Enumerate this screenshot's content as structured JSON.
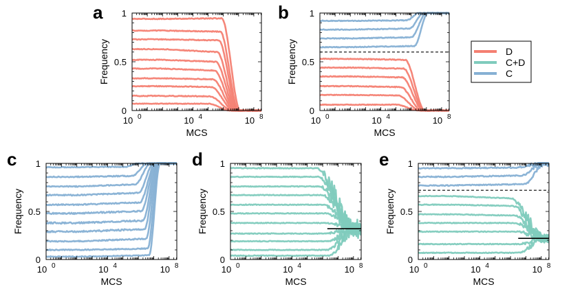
{
  "colors": {
    "D": "#f47f72",
    "CD": "#7fcbbd",
    "C": "#86b0d4",
    "axis": "#000000",
    "guide": "#000000"
  },
  "legend": {
    "entries": [
      {
        "label": "D",
        "color": "#f47f72"
      },
      {
        "label": "C+D",
        "color": "#7fcbbd"
      },
      {
        "label": "C",
        "color": "#86b0d4"
      }
    ]
  },
  "chart_data": [
    {
      "id": "a",
      "letter": "a",
      "type": "line",
      "xlabel": "MCS",
      "ylabel": "Frequency",
      "xscale": "log10",
      "xlim_exp": [
        0,
        8.5
      ],
      "ylim": [
        0,
        1
      ],
      "xticks": [
        {
          "exp": 0,
          "label": "10",
          "sup": "0"
        },
        {
          "exp": 4,
          "label": "10",
          "sup": "4"
        },
        {
          "exp": 8,
          "label": "10",
          "sup": "8"
        }
      ],
      "yticks": [
        {
          "value": 0,
          "label": "0"
        },
        {
          "value": 0.5,
          "label": "0.5"
        },
        {
          "value": 1,
          "label": "1"
        }
      ],
      "hline": null,
      "series": [
        {
          "name": "D",
          "color": "#f47f72",
          "start": 0.94,
          "end": 0,
          "drift": 0.005,
          "t1": 5.9,
          "t2": 7.1,
          "noise": 0.004
        },
        {
          "name": "D",
          "color": "#f47f72",
          "start": 0.82,
          "end": 0,
          "drift": -0.01,
          "t1": 5.8,
          "t2": 7.0,
          "noise": 0.004
        },
        {
          "name": "D",
          "color": "#f47f72",
          "start": 0.73,
          "end": 0,
          "drift": -0.01,
          "t1": 5.7,
          "t2": 6.95,
          "noise": 0.004
        },
        {
          "name": "D",
          "color": "#f47f72",
          "start": 0.63,
          "end": 0,
          "drift": -0.03,
          "t1": 5.6,
          "t2": 6.9,
          "noise": 0.004
        },
        {
          "name": "D",
          "color": "#f47f72",
          "start": 0.52,
          "end": 0,
          "drift": -0.02,
          "t1": 5.5,
          "t2": 6.85,
          "noise": 0.004
        },
        {
          "name": "D",
          "color": "#f47f72",
          "start": 0.43,
          "end": 0,
          "drift": -0.02,
          "t1": 5.4,
          "t2": 6.8,
          "noise": 0.004
        },
        {
          "name": "D",
          "color": "#f47f72",
          "start": 0.33,
          "end": 0,
          "drift": -0.01,
          "t1": 5.3,
          "t2": 6.75,
          "noise": 0.004
        },
        {
          "name": "D",
          "color": "#f47f72",
          "start": 0.25,
          "end": 0,
          "drift": -0.01,
          "t1": 5.2,
          "t2": 6.7,
          "noise": 0.004
        },
        {
          "name": "D",
          "color": "#f47f72",
          "start": 0.15,
          "end": 0,
          "drift": -0.005,
          "t1": 5.1,
          "t2": 6.6,
          "noise": 0.004
        },
        {
          "name": "D",
          "color": "#f47f72",
          "start": 0.07,
          "end": 0,
          "drift": 0,
          "t1": 5.0,
          "t2": 6.5,
          "noise": 0.003
        }
      ]
    },
    {
      "id": "b",
      "letter": "b",
      "type": "line",
      "xlabel": "MCS",
      "ylabel": "Frequency",
      "xscale": "log10",
      "xlim_exp": [
        0,
        8.5
      ],
      "ylim": [
        0,
        1
      ],
      "xticks": [
        {
          "exp": 0,
          "label": "10",
          "sup": "0"
        },
        {
          "exp": 4,
          "label": "10",
          "sup": "4"
        },
        {
          "exp": 8,
          "label": "10",
          "sup": "8"
        }
      ],
      "yticks": [
        {
          "value": 0,
          "label": "0"
        },
        {
          "value": 0.5,
          "label": "0.5"
        },
        {
          "value": 1,
          "label": "1"
        }
      ],
      "hline": {
        "y": 0.6,
        "style": "dashed"
      },
      "series": [
        {
          "name": "C",
          "color": "#86b0d4",
          "start": 0.92,
          "end": 1,
          "drift": 0.005,
          "t1": 5.7,
          "t2": 6.5,
          "noise": 0.004
        },
        {
          "name": "C",
          "color": "#86b0d4",
          "start": 0.83,
          "end": 1,
          "drift": 0.01,
          "t1": 5.9,
          "t2": 6.8,
          "noise": 0.004
        },
        {
          "name": "C",
          "color": "#86b0d4",
          "start": 0.74,
          "end": 1,
          "drift": 0.01,
          "t1": 6.0,
          "t2": 7.0,
          "noise": 0.004
        },
        {
          "name": "C",
          "color": "#86b0d4",
          "start": 0.65,
          "end": 1,
          "drift": 0.01,
          "t1": 6.2,
          "t2": 7.1,
          "noise": 0.004
        },
        {
          "name": "D",
          "color": "#f47f72",
          "start": 0.53,
          "end": 0,
          "drift": -0.01,
          "t1": 5.6,
          "t2": 6.9,
          "noise": 0.004
        },
        {
          "name": "D",
          "color": "#f47f72",
          "start": 0.44,
          "end": 0,
          "drift": -0.01,
          "t1": 5.5,
          "t2": 6.85,
          "noise": 0.004
        },
        {
          "name": "D",
          "color": "#f47f72",
          "start": 0.35,
          "end": 0,
          "drift": -0.01,
          "t1": 5.4,
          "t2": 6.8,
          "noise": 0.004
        },
        {
          "name": "D",
          "color": "#f47f72",
          "start": 0.25,
          "end": 0,
          "drift": -0.01,
          "t1": 5.3,
          "t2": 6.7,
          "noise": 0.004
        },
        {
          "name": "D",
          "color": "#f47f72",
          "start": 0.16,
          "end": 0,
          "drift": -0.005,
          "t1": 5.1,
          "t2": 6.6,
          "noise": 0.003
        },
        {
          "name": "D",
          "color": "#f47f72",
          "start": 0.06,
          "end": 0,
          "drift": 0,
          "t1": 5.0,
          "t2": 6.5,
          "noise": 0.003
        }
      ]
    },
    {
      "id": "c",
      "letter": "c",
      "type": "line",
      "xlabel": "MCS",
      "ylabel": "Frequency",
      "xscale": "log10",
      "xlim_exp": [
        0,
        8.5
      ],
      "ylim": [
        0,
        1
      ],
      "xticks": [
        {
          "exp": 0,
          "label": "10",
          "sup": "0"
        },
        {
          "exp": 4,
          "label": "10",
          "sup": "4"
        },
        {
          "exp": 8,
          "label": "10",
          "sup": "8"
        }
      ],
      "yticks": [
        {
          "value": 0,
          "label": "0"
        },
        {
          "value": 0.5,
          "label": "0.5"
        },
        {
          "value": 1,
          "label": "1"
        }
      ],
      "hline": null,
      "series": [
        {
          "name": "C",
          "color": "#86b0d4",
          "start": 0.96,
          "end": 1,
          "drift": 0.005,
          "t1": 5.2,
          "t2": 6.0,
          "noise": 0.004
        },
        {
          "name": "C",
          "color": "#86b0d4",
          "start": 0.86,
          "end": 1,
          "drift": 0.01,
          "t1": 5.6,
          "t2": 6.6,
          "noise": 0.005
        },
        {
          "name": "C",
          "color": "#86b0d4",
          "start": 0.76,
          "end": 1,
          "drift": 0.02,
          "t1": 5.8,
          "t2": 6.8,
          "noise": 0.005
        },
        {
          "name": "C",
          "color": "#86b0d4",
          "start": 0.67,
          "end": 1,
          "drift": 0.02,
          "t1": 6.0,
          "t2": 7.0,
          "noise": 0.006
        },
        {
          "name": "C",
          "color": "#86b0d4",
          "start": 0.57,
          "end": 1,
          "drift": 0.02,
          "t1": 6.1,
          "t2": 7.1,
          "noise": 0.006
        },
        {
          "name": "C",
          "color": "#86b0d4",
          "start": 0.48,
          "end": 1,
          "drift": 0.02,
          "t1": 6.2,
          "t2": 7.15,
          "noise": 0.007
        },
        {
          "name": "C",
          "color": "#86b0d4",
          "start": 0.38,
          "end": 1,
          "drift": 0.02,
          "t1": 6.3,
          "t2": 7.2,
          "noise": 0.008
        },
        {
          "name": "C",
          "color": "#86b0d4",
          "start": 0.29,
          "end": 1,
          "drift": 0.02,
          "t1": 6.4,
          "t2": 7.25,
          "noise": 0.008
        },
        {
          "name": "C",
          "color": "#86b0d4",
          "start": 0.19,
          "end": 1,
          "drift": 0.02,
          "t1": 6.5,
          "t2": 7.3,
          "noise": 0.006
        },
        {
          "name": "C",
          "color": "#86b0d4",
          "start": 0.1,
          "end": 1,
          "drift": 0.01,
          "t1": 6.6,
          "t2": 7.35,
          "noise": 0.005
        },
        {
          "name": "C",
          "color": "#86b0d4",
          "start": 0.03,
          "end": 1,
          "drift": 0.01,
          "t1": 6.7,
          "t2": 7.4,
          "noise": 0.004
        }
      ]
    },
    {
      "id": "d",
      "letter": "d",
      "type": "line",
      "xlabel": "MCS",
      "ylabel": "Frequency",
      "xscale": "log10",
      "xlim_exp": [
        0,
        8.5
      ],
      "ylim": [
        0,
        1
      ],
      "xticks": [
        {
          "exp": 0,
          "label": "10",
          "sup": "0"
        },
        {
          "exp": 4,
          "label": "10",
          "sup": "4"
        },
        {
          "exp": 8,
          "label": "10",
          "sup": "8"
        }
      ],
      "yticks": [
        {
          "value": 0,
          "label": "0"
        },
        {
          "value": 0.5,
          "label": "0.5"
        },
        {
          "value": 1,
          "label": "1"
        }
      ],
      "hline": {
        "y": 0.32,
        "style": "solid",
        "from_exp": 6.3
      },
      "series": [
        {
          "name": "C+D",
          "color": "#7fcbbd",
          "start": 0.95,
          "end": 0.32,
          "drift": 0,
          "t1": 5.6,
          "t2": 8.1,
          "noise": 0.004,
          "osc": 0.2
        },
        {
          "name": "C+D",
          "color": "#7fcbbd",
          "start": 0.86,
          "end": 0.32,
          "drift": 0,
          "t1": 5.7,
          "t2": 8.1,
          "noise": 0.004,
          "osc": 0.16
        },
        {
          "name": "C+D",
          "color": "#7fcbbd",
          "start": 0.76,
          "end": 0.32,
          "drift": 0,
          "t1": 5.8,
          "t2": 8.1,
          "noise": 0.004,
          "osc": 0.14
        },
        {
          "name": "C+D",
          "color": "#7fcbbd",
          "start": 0.67,
          "end": 0.32,
          "drift": 0,
          "t1": 5.9,
          "t2": 8.1,
          "noise": 0.004,
          "osc": 0.12
        },
        {
          "name": "C+D",
          "color": "#7fcbbd",
          "start": 0.57,
          "end": 0.32,
          "drift": 0,
          "t1": 6.0,
          "t2": 8.1,
          "noise": 0.004,
          "osc": 0.1
        },
        {
          "name": "C+D",
          "color": "#7fcbbd",
          "start": 0.48,
          "end": 0.32,
          "drift": 0,
          "t1": 6.1,
          "t2": 8.1,
          "noise": 0.004,
          "osc": 0.08
        },
        {
          "name": "C+D",
          "color": "#7fcbbd",
          "start": 0.38,
          "end": 0.32,
          "drift": 0,
          "t1": 6.2,
          "t2": 8.1,
          "noise": 0.004,
          "osc": 0.06
        },
        {
          "name": "C+D",
          "color": "#7fcbbd",
          "start": 0.27,
          "end": 0.32,
          "drift": 0,
          "t1": 6.2,
          "t2": 8.1,
          "noise": 0.004,
          "osc": 0.08
        },
        {
          "name": "C+D",
          "color": "#7fcbbd",
          "start": 0.19,
          "end": 0.32,
          "drift": 0,
          "t1": 6.3,
          "t2": 8.1,
          "noise": 0.004,
          "osc": 0.1
        },
        {
          "name": "C+D",
          "color": "#7fcbbd",
          "start": 0.1,
          "end": 0.32,
          "drift": 0,
          "t1": 6.3,
          "t2": 8.1,
          "noise": 0.004,
          "osc": 0.12
        },
        {
          "name": "C+D",
          "color": "#7fcbbd",
          "start": 0.04,
          "end": 0.32,
          "drift": 0,
          "t1": 6.4,
          "t2": 8.1,
          "noise": 0.004,
          "osc": 0.1
        }
      ]
    },
    {
      "id": "e",
      "letter": "e",
      "type": "line",
      "xlabel": "MCS",
      "ylabel": "Frequency",
      "xscale": "log10",
      "xlim_exp": [
        0,
        8.5
      ],
      "ylim": [
        0,
        1
      ],
      "xticks": [
        {
          "exp": 0,
          "label": "10",
          "sup": "0"
        },
        {
          "exp": 4,
          "label": "10",
          "sup": "4"
        },
        {
          "exp": 8,
          "label": "10",
          "sup": "8"
        }
      ],
      "yticks": [
        {
          "value": 0,
          "label": "0"
        },
        {
          "value": 0.5,
          "label": "0.5"
        },
        {
          "value": 1,
          "label": "1"
        }
      ],
      "hline": {
        "y": 0.72,
        "style": "dashed"
      },
      "hline2": {
        "y": 0.22,
        "style": "solid",
        "from_exp": 6.5
      },
      "series": [
        {
          "name": "C",
          "color": "#86b0d4",
          "start": 0.95,
          "end": 1,
          "drift": 0.005,
          "t1": 6.4,
          "t2": 8.0,
          "noise": 0.005,
          "osc": 0.04
        },
        {
          "name": "C",
          "color": "#86b0d4",
          "start": 0.86,
          "end": 1,
          "drift": 0.01,
          "t1": 6.7,
          "t2": 8.1,
          "noise": 0.005,
          "osc": 0.06
        },
        {
          "name": "C",
          "color": "#86b0d4",
          "start": 0.77,
          "end": 1,
          "drift": 0.01,
          "t1": 6.9,
          "t2": 8.2,
          "noise": 0.005,
          "osc": 0.06
        },
        {
          "name": "C+D",
          "color": "#7fcbbd",
          "start": 0.66,
          "end": 0.22,
          "drift": -0.02,
          "t1": 6.0,
          "t2": 8.2,
          "noise": 0.004,
          "osc": 0.12
        },
        {
          "name": "C+D",
          "color": "#7fcbbd",
          "start": 0.57,
          "end": 0.22,
          "drift": -0.01,
          "t1": 6.1,
          "t2": 8.2,
          "noise": 0.004,
          "osc": 0.1
        },
        {
          "name": "C+D",
          "color": "#7fcbbd",
          "start": 0.47,
          "end": 0.22,
          "drift": -0.01,
          "t1": 6.2,
          "t2": 8.2,
          "noise": 0.004,
          "osc": 0.09
        },
        {
          "name": "C+D",
          "color": "#7fcbbd",
          "start": 0.38,
          "end": 0.22,
          "drift": 0,
          "t1": 6.3,
          "t2": 8.2,
          "noise": 0.004,
          "osc": 0.08
        },
        {
          "name": "C+D",
          "color": "#7fcbbd",
          "start": 0.29,
          "end": 0.22,
          "drift": 0,
          "t1": 6.4,
          "t2": 8.2,
          "noise": 0.004,
          "osc": 0.07
        },
        {
          "name": "C+D",
          "color": "#7fcbbd",
          "start": 0.16,
          "end": 0.22,
          "drift": 0,
          "t1": 6.5,
          "t2": 8.2,
          "noise": 0.004,
          "osc": 0.07
        },
        {
          "name": "C+D",
          "color": "#7fcbbd",
          "start": 0.07,
          "end": 0.22,
          "drift": 0,
          "t1": 6.5,
          "t2": 8.2,
          "noise": 0.004,
          "osc": 0.07
        }
      ]
    }
  ]
}
